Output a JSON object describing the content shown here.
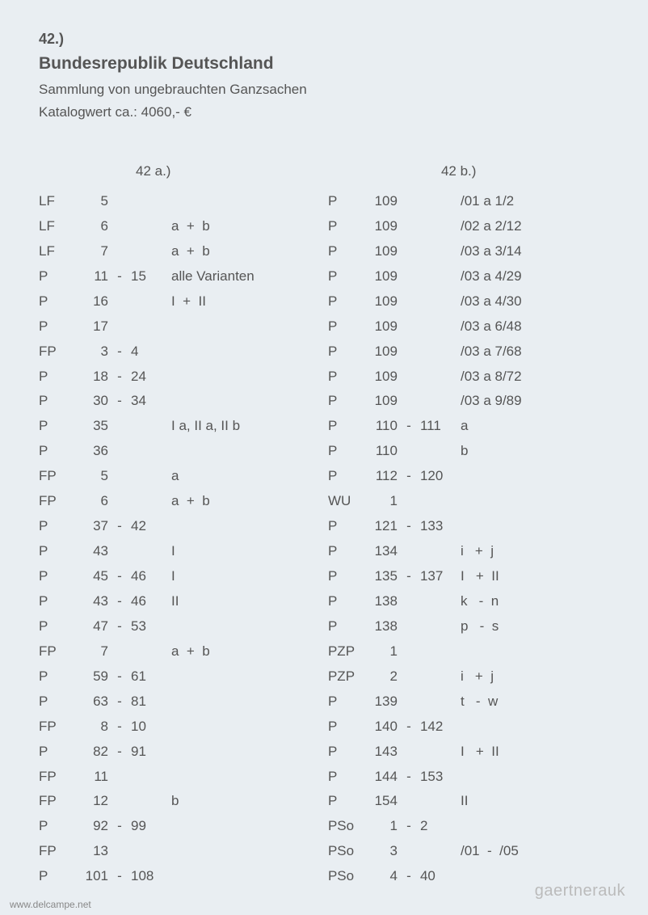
{
  "header": {
    "lot_number": "42.)",
    "title": "Bundesrepublik Deutschland",
    "subtitle": "Sammlung von ungebrauchten Ganzsachen",
    "catalog": "Katalogwert ca.: 4060,- €"
  },
  "col_a": {
    "header": "42 a.)",
    "rows": [
      {
        "p": "LF",
        "n1": "5",
        "s": "",
        "n2": "",
        "note": ""
      },
      {
        "p": "LF",
        "n1": "6",
        "s": "",
        "n2": "",
        "note": "a  +  b"
      },
      {
        "p": "LF",
        "n1": "7",
        "s": "",
        "n2": "",
        "note": "a  +  b"
      },
      {
        "p": "P",
        "n1": "11",
        "s": "-",
        "n2": "15",
        "note": "alle Varianten"
      },
      {
        "p": "P",
        "n1": "16",
        "s": "",
        "n2": "",
        "note": "I  +  II"
      },
      {
        "p": "P",
        "n1": "17",
        "s": "",
        "n2": "",
        "note": ""
      },
      {
        "p": "FP",
        "n1": "3",
        "s": "-",
        "n2": "4",
        "note": ""
      },
      {
        "p": "P",
        "n1": "18",
        "s": "-",
        "n2": "24",
        "note": ""
      },
      {
        "p": "P",
        "n1": "30",
        "s": "-",
        "n2": "34",
        "note": ""
      },
      {
        "p": "P",
        "n1": "35",
        "s": "",
        "n2": "",
        "note": "I a, II a, II b"
      },
      {
        "p": "P",
        "n1": "36",
        "s": "",
        "n2": "",
        "note": ""
      },
      {
        "p": "FP",
        "n1": "5",
        "s": "",
        "n2": "",
        "note": "a"
      },
      {
        "p": "FP",
        "n1": "6",
        "s": "",
        "n2": "",
        "note": "a  +  b"
      },
      {
        "p": "P",
        "n1": "37",
        "s": "-",
        "n2": "42",
        "note": ""
      },
      {
        "p": "P",
        "n1": "43",
        "s": "",
        "n2": "",
        "note": "I"
      },
      {
        "p": "P",
        "n1": "45",
        "s": "-",
        "n2": "46",
        "note": "I"
      },
      {
        "p": "P",
        "n1": "43",
        "s": "-",
        "n2": "46",
        "note": "II"
      },
      {
        "p": "P",
        "n1": "47",
        "s": "-",
        "n2": "53",
        "note": ""
      },
      {
        "p": "FP",
        "n1": "7",
        "s": "",
        "n2": "",
        "note": "a  +  b"
      },
      {
        "p": "P",
        "n1": "59",
        "s": "-",
        "n2": "61",
        "note": ""
      },
      {
        "p": "P",
        "n1": "63",
        "s": "-",
        "n2": "81",
        "note": ""
      },
      {
        "p": "FP",
        "n1": "8",
        "s": "-",
        "n2": "10",
        "note": ""
      },
      {
        "p": "P",
        "n1": "82",
        "s": "-",
        "n2": "91",
        "note": ""
      },
      {
        "p": "FP",
        "n1": "11",
        "s": "",
        "n2": "",
        "note": ""
      },
      {
        "p": "FP",
        "n1": "12",
        "s": "",
        "n2": "",
        "note": "b"
      },
      {
        "p": "P",
        "n1": "92",
        "s": "-",
        "n2": "99",
        "note": ""
      },
      {
        "p": "FP",
        "n1": "13",
        "s": "",
        "n2": "",
        "note": ""
      },
      {
        "p": "P",
        "n1": "101",
        "s": "-",
        "n2": "108",
        "note": ""
      }
    ]
  },
  "col_b": {
    "header": "42 b.)",
    "rows": [
      {
        "p": "P",
        "n1": "109",
        "s": "",
        "n2": "",
        "note": "/01 a 1/2"
      },
      {
        "p": "P",
        "n1": "109",
        "s": "",
        "n2": "",
        "note": "/02 a 2/12"
      },
      {
        "p": "P",
        "n1": "109",
        "s": "",
        "n2": "",
        "note": "/03 a 3/14"
      },
      {
        "p": "P",
        "n1": "109",
        "s": "",
        "n2": "",
        "note": "/03 a 4/29"
      },
      {
        "p": "P",
        "n1": "109",
        "s": "",
        "n2": "",
        "note": "/03 a 4/30"
      },
      {
        "p": "P",
        "n1": "109",
        "s": "",
        "n2": "",
        "note": "/03 a 6/48"
      },
      {
        "p": "P",
        "n1": "109",
        "s": "",
        "n2": "",
        "note": "/03 a 7/68"
      },
      {
        "p": "P",
        "n1": "109",
        "s": "",
        "n2": "",
        "note": "/03 a 8/72"
      },
      {
        "p": "P",
        "n1": "109",
        "s": "",
        "n2": "",
        "note": "/03 a 9/89"
      },
      {
        "p": "P",
        "n1": "110",
        "s": "-",
        "n2": "111",
        "note": "a"
      },
      {
        "p": "P",
        "n1": "110",
        "s": "",
        "n2": "",
        "note": "b"
      },
      {
        "p": "P",
        "n1": "112",
        "s": "-",
        "n2": "120",
        "note": ""
      },
      {
        "p": "WU",
        "n1": "1",
        "s": "",
        "n2": "",
        "note": ""
      },
      {
        "p": "P",
        "n1": "121",
        "s": "-",
        "n2": "133",
        "note": ""
      },
      {
        "p": "P",
        "n1": "134",
        "s": "",
        "n2": "",
        "note": "i   +  j"
      },
      {
        "p": "P",
        "n1": "135",
        "s": "-",
        "n2": "137",
        "note": "I   +  II"
      },
      {
        "p": "P",
        "n1": "138",
        "s": "",
        "n2": "",
        "note": "k   -  n"
      },
      {
        "p": "P",
        "n1": "138",
        "s": "",
        "n2": "",
        "note": "p   -  s"
      },
      {
        "p": "PZP",
        "n1": "1",
        "s": "",
        "n2": "",
        "note": ""
      },
      {
        "p": "PZP",
        "n1": "2",
        "s": "",
        "n2": "",
        "note": "i   +  j"
      },
      {
        "p": "P",
        "n1": "139",
        "s": "",
        "n2": "",
        "note": "t   -  w"
      },
      {
        "p": "P",
        "n1": "140",
        "s": "-",
        "n2": "142",
        "note": ""
      },
      {
        "p": "P",
        "n1": "143",
        "s": "",
        "n2": "",
        "note": "I   +  II"
      },
      {
        "p": "P",
        "n1": "144",
        "s": "-",
        "n2": "153",
        "note": ""
      },
      {
        "p": "P",
        "n1": "154",
        "s": "",
        "n2": "",
        "note": "II"
      },
      {
        "p": "PSo",
        "n1": "1",
        "s": "-",
        "n2": "2",
        "note": ""
      },
      {
        "p": "PSo",
        "n1": "3",
        "s": "",
        "n2": "",
        "note": "/01  -  /05"
      },
      {
        "p": "PSo",
        "n1": "4",
        "s": "-",
        "n2": "40",
        "note": ""
      }
    ]
  },
  "watermark": "gaertnerauk",
  "footer": "www.delcampe.net"
}
